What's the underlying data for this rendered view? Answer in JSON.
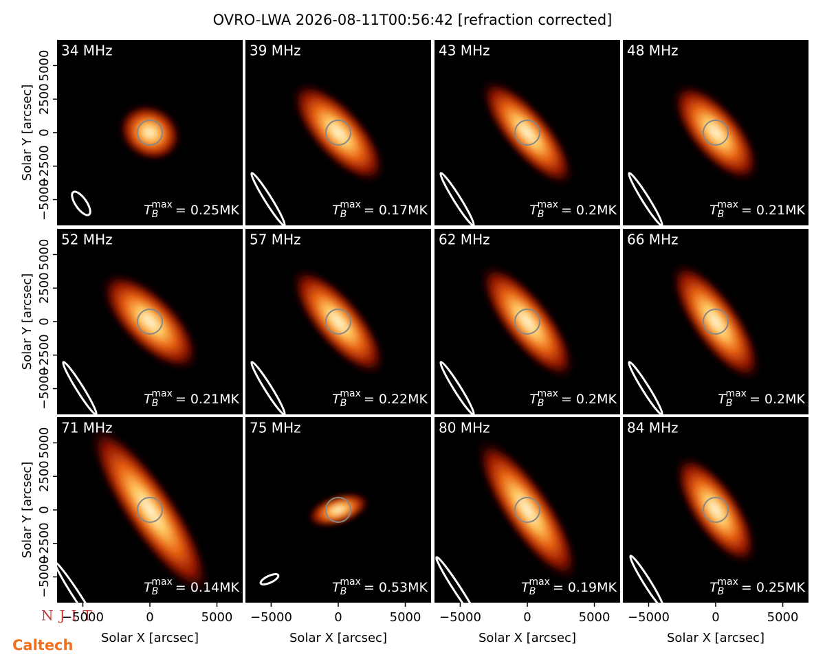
{
  "chart_data": {
    "type": "image-grid",
    "title": "OVRO-LWA 2026-08-11T00:56:42 [refraction corrected]",
    "xlabel": "Solar X [arcsec]",
    "ylabel": "Solar Y [arcsec]",
    "xlim": [
      -6920,
      6920
    ],
    "ylim": [
      -6920,
      6920
    ],
    "xticks": [
      {
        "value": -5000,
        "label": "−5000"
      },
      0,
      5000
    ],
    "yticks": [
      {
        "value": -5000,
        "label": "−5000"
      },
      {
        "value": -2500,
        "label": "−2500"
      },
      0,
      2500,
      5000
    ],
    "tb_symbol": {
      "base": "T",
      "sub": "B",
      "sup": "max"
    },
    "panels": [
      {
        "label": "34 MHz",
        "tb_text": "= 0.25MK"
      },
      {
        "label": "39 MHz",
        "tb_text": "= 0.17MK"
      },
      {
        "label": "43 MHz",
        "tb_text": "= 0.2MK"
      },
      {
        "label": "48 MHz",
        "tb_text": "= 0.21MK"
      },
      {
        "label": "52 MHz",
        "tb_text": "= 0.21MK"
      },
      {
        "label": "57 MHz",
        "tb_text": "= 0.22MK"
      },
      {
        "label": "62 MHz",
        "tb_text": "= 0.2MK"
      },
      {
        "label": "66 MHz",
        "tb_text": "= 0.2MK"
      },
      {
        "label": "71 MHz",
        "tb_text": "= 0.14MK"
      },
      {
        "label": "75 MHz",
        "tb_text": "= 0.53MK"
      },
      {
        "label": "80 MHz",
        "tb_text": "= 0.19MK"
      },
      {
        "label": "84 MHz",
        "tb_text": "= 0.25MK"
      }
    ],
    "logos": [
      "NJIT",
      "Caltech"
    ]
  }
}
